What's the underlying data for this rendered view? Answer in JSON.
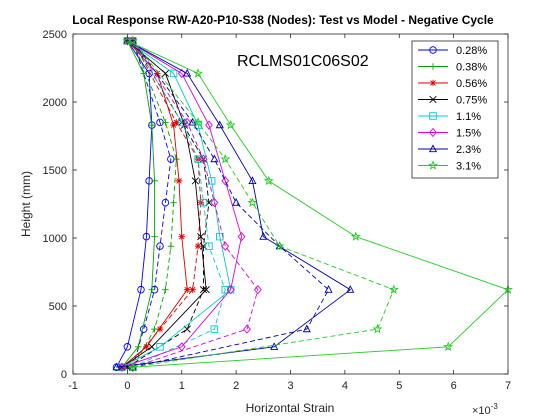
{
  "chart_data": {
    "type": "line",
    "title": "Local Response RW-A20-P10-S38 (Nodes): Test vs Model - Negative Cycle",
    "xlabel": "Horizontal Strain",
    "ylabel": "Height (mm)",
    "x_exponent": "×10",
    "x_exponent_power": "-3",
    "annotation": "RCLMS01C06S02",
    "xlim": [
      -1,
      7
    ],
    "ylim": [
      0,
      2500
    ],
    "xticks": [
      -1,
      0,
      1,
      2,
      3,
      4,
      5,
      6,
      7
    ],
    "yticks": [
      0,
      500,
      1000,
      1500,
      2000,
      2500
    ],
    "grid": false,
    "legend_position": "top-right",
    "series": [
      {
        "name": "0.28%",
        "color": "#0000ff",
        "marker": "circle",
        "test": {
          "x": [
            0.1,
            0.3,
            0.5,
            0.6,
            0.7,
            0.8,
            0.6,
            0.1
          ],
          "y": [
            50,
            330,
            620,
            940,
            1260,
            1580,
            1850,
            2450
          ]
        },
        "model": {
          "x": [
            -0.2,
            0.0,
            0.25,
            0.35,
            0.4,
            0.45,
            0.4,
            0.0
          ],
          "y": [
            50,
            200,
            620,
            1010,
            1420,
            1830,
            2210,
            2450
          ]
        }
      },
      {
        "name": "0.38%",
        "color": "#00aa00",
        "marker": "plus",
        "test": {
          "x": [
            0.1,
            0.5,
            0.7,
            0.8,
            0.85,
            0.9,
            0.7,
            0.1
          ],
          "y": [
            50,
            330,
            620,
            940,
            1260,
            1580,
            1850,
            2450
          ]
        },
        "model": {
          "x": [
            -0.1,
            0.2,
            0.45,
            0.5,
            0.5,
            0.45,
            0.3,
            0.0
          ],
          "y": [
            50,
            200,
            620,
            1010,
            1420,
            1830,
            2210,
            2450
          ]
        }
      },
      {
        "name": "0.56%",
        "color": "#dd0000",
        "marker": "asterisk",
        "test": {
          "x": [
            0.0,
            0.6,
            1.2,
            1.3,
            1.35,
            1.3,
            0.9,
            0.1
          ],
          "y": [
            50,
            330,
            620,
            940,
            1260,
            1580,
            1850,
            2450
          ]
        },
        "model": {
          "x": [
            -0.1,
            0.35,
            1.1,
            1.0,
            0.95,
            0.85,
            0.55,
            0.0
          ],
          "y": [
            50,
            200,
            620,
            1010,
            1420,
            1830,
            2210,
            2450
          ]
        }
      },
      {
        "name": "0.75%",
        "color": "#000000",
        "marker": "x",
        "test": {
          "x": [
            0.0,
            1.1,
            1.4,
            1.4,
            1.5,
            1.4,
            1.0,
            0.1
          ],
          "y": [
            50,
            330,
            620,
            940,
            1260,
            1580,
            1850,
            2450
          ]
        },
        "model": {
          "x": [
            -0.1,
            0.45,
            1.45,
            1.35,
            1.25,
            1.05,
            0.7,
            0.0
          ],
          "y": [
            50,
            200,
            620,
            1010,
            1420,
            1830,
            2210,
            2450
          ]
        }
      },
      {
        "name": "1.1%",
        "color": "#00cccc",
        "marker": "square",
        "test": {
          "x": [
            0.1,
            1.6,
            1.8,
            1.5,
            1.4,
            1.3,
            1.0,
            0.1
          ],
          "y": [
            50,
            330,
            620,
            940,
            1260,
            1580,
            1850,
            2450
          ]
        },
        "model": {
          "x": [
            -0.1,
            0.6,
            1.9,
            1.7,
            1.55,
            1.3,
            0.85,
            0.0
          ],
          "y": [
            50,
            200,
            620,
            1010,
            1420,
            1830,
            2210,
            2450
          ]
        }
      },
      {
        "name": "1.5%",
        "color": "#dd00dd",
        "marker": "diamond",
        "test": {
          "x": [
            0.1,
            2.2,
            2.4,
            1.8,
            1.6,
            1.4,
            1.1,
            0.1
          ],
          "y": [
            50,
            330,
            620,
            940,
            1260,
            1580,
            1850,
            2450
          ]
        },
        "model": {
          "x": [
            -0.1,
            1.0,
            1.9,
            2.1,
            1.8,
            1.5,
            1.0,
            0.0
          ],
          "y": [
            50,
            200,
            620,
            1010,
            1420,
            1830,
            2210,
            2450
          ]
        }
      },
      {
        "name": "2.3%",
        "color": "#0000aa",
        "marker": "triangle",
        "test": {
          "x": [
            0.1,
            3.3,
            3.7,
            2.8,
            2.0,
            1.6,
            1.2,
            0.1
          ],
          "y": [
            50,
            330,
            620,
            940,
            1260,
            1580,
            1850,
            2450
          ]
        },
        "model": {
          "x": [
            -0.2,
            2.7,
            4.1,
            2.5,
            2.3,
            1.7,
            1.1,
            0.0
          ],
          "y": [
            50,
            200,
            620,
            1010,
            1420,
            1830,
            2210,
            2450
          ]
        }
      },
      {
        "name": "3.1%",
        "color": "#22cc22",
        "marker": "star",
        "test": {
          "x": [
            0.1,
            4.6,
            4.9,
            2.8,
            2.3,
            1.8,
            1.3,
            0.1
          ],
          "y": [
            50,
            330,
            620,
            940,
            1260,
            1580,
            1850,
            2450
          ]
        },
        "model": {
          "x": [
            0.1,
            5.9,
            7.0,
            4.2,
            2.6,
            1.9,
            1.3,
            0.0
          ],
          "y": [
            50,
            200,
            620,
            1010,
            1420,
            1830,
            2210,
            2450
          ]
        }
      }
    ]
  }
}
